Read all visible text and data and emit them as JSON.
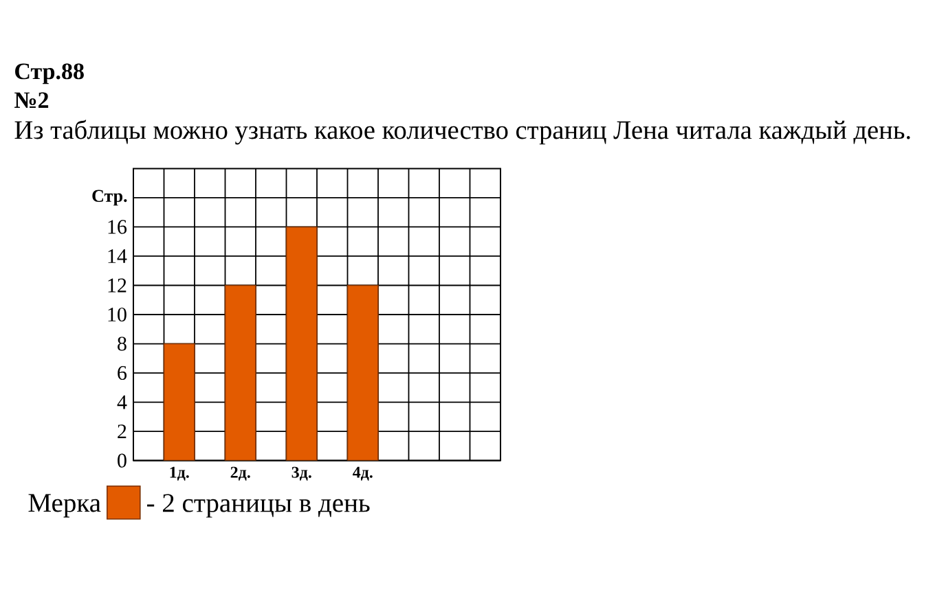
{
  "chart_data": {
    "type": "bar",
    "title": "Стр.88",
    "subtitle": "№2",
    "annotations": [
      "Из таблицы можно узнать какое количество страниц Лена читала каждый день."
    ],
    "ylabel": "Стр.",
    "legend_title": "Мерка",
    "categories": [
      "1д.",
      "2д.",
      "3д.",
      "4д."
    ],
    "series": [
      {
        "name": "- 2 страницы в день",
        "color": "#e35b00",
        "values": [
          8,
          12,
          16,
          12
        ]
      }
    ],
    "ylim": [
      0,
      20
    ],
    "yticks": [
      0,
      2,
      4,
      6,
      8,
      10,
      12,
      14,
      16,
      {
        "value": 18,
        "label": null
      }
    ],
    "grid": true,
    "legend": "bottom left"
  }
}
